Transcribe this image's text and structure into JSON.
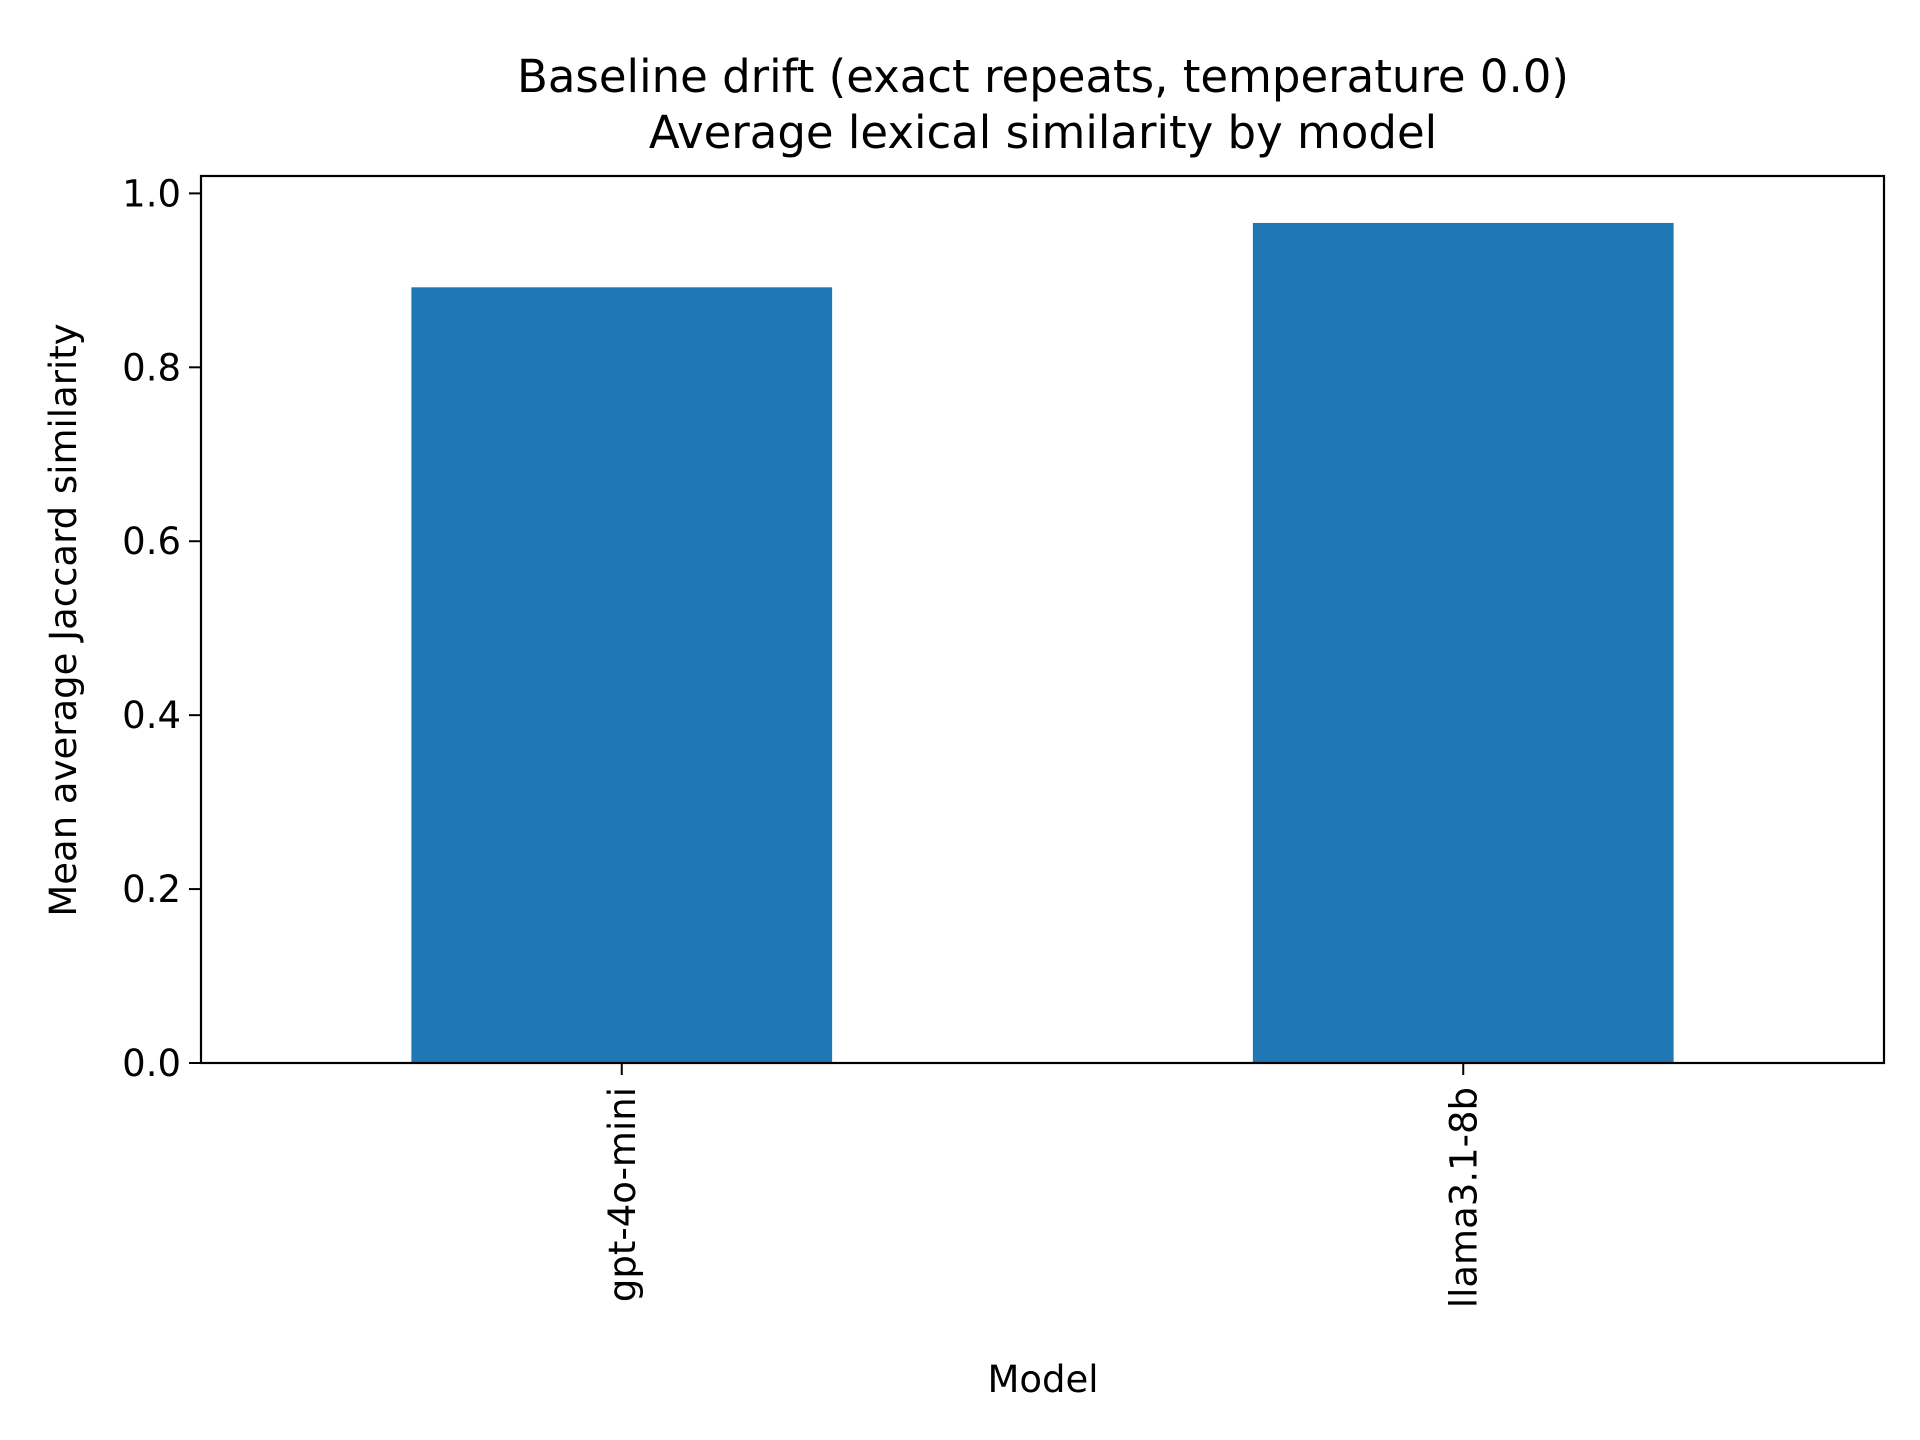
{
  "chart_data": {
    "type": "bar",
    "title_line1": "Baseline drift (exact repeats, temperature 0.0)",
    "title_line2": "Average lexical similarity by model",
    "xlabel": "Model",
    "ylabel": "Mean average Jaccard similarity",
    "categories": [
      "gpt-4o-mini",
      "llama3.1-8b"
    ],
    "values": [
      0.892,
      0.966
    ],
    "ylim": [
      0,
      1.02
    ],
    "yticks": [
      0.0,
      0.2,
      0.4,
      0.6,
      0.8,
      1.0
    ],
    "ytick_labels": [
      "0.0",
      "0.2",
      "0.4",
      "0.6",
      "0.8",
      "1.0"
    ],
    "bar_color": "#1f77b4",
    "grid": false,
    "legend": "none"
  }
}
